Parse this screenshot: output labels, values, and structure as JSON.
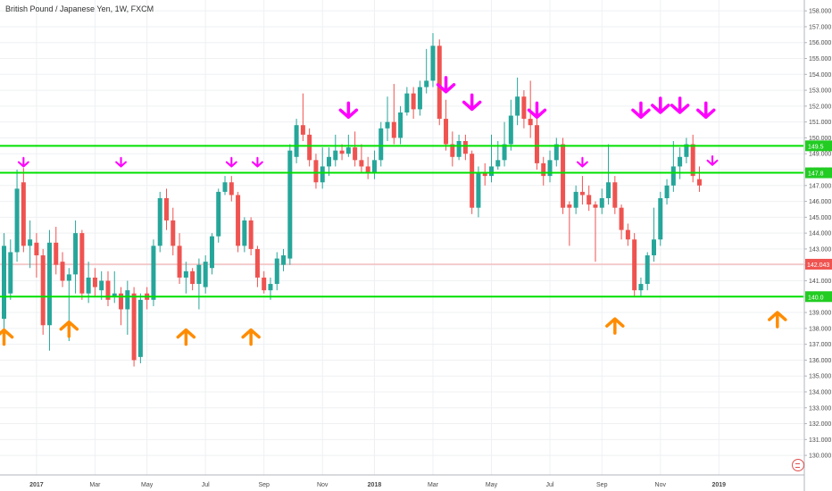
{
  "header": {
    "title": "British Pound / Japanese Yen, 1W, FXCM"
  },
  "colors": {
    "up": "#26a69a",
    "down": "#ef5350",
    "level_line": "#00e000",
    "sell_arrow": "#ff00ff",
    "buy_arrow": "#ff8c00",
    "current_price_line": "#f4a3a3",
    "current_price_tag": "#ef5350",
    "level_tag": "#22cc22"
  },
  "chart_data": {
    "type": "candlestick",
    "title": "British Pound / Japanese Yen, 1W, FXCM",
    "ylim": [
      129.5,
      158.6
    ],
    "y_ticks": [
      130.0,
      131.0,
      132.0,
      133.0,
      134.0,
      135.0,
      136.0,
      137.0,
      138.0,
      139.0,
      140.0,
      141.0,
      142.0,
      143.0,
      144.0,
      145.0,
      146.0,
      147.0,
      148.0,
      149.0,
      150.0,
      151.0,
      152.0,
      153.0,
      154.0,
      155.0,
      156.0,
      157.0,
      158.0
    ],
    "x_ticks": [
      {
        "label": "2017",
        "index": 5
      },
      {
        "label": "Mar",
        "index": 14
      },
      {
        "label": "May",
        "index": 22
      },
      {
        "label": "Jul",
        "index": 31
      },
      {
        "label": "Sep",
        "index": 40
      },
      {
        "label": "Nov",
        "index": 49
      },
      {
        "label": "2018",
        "index": 57
      },
      {
        "label": "Mar",
        "index": 66
      },
      {
        "label": "May",
        "index": 75
      },
      {
        "label": "Jul",
        "index": 84
      },
      {
        "label": "Sep",
        "index": 92
      },
      {
        "label": "Nov",
        "index": 101
      },
      {
        "label": "2019",
        "index": 110
      }
    ],
    "candles": [
      [
        138.6,
        143.2,
        137.0,
        144.0
      ],
      [
        140.2,
        142.8,
        139.8,
        143.6
      ],
      [
        142.8,
        146.8,
        142.2,
        148.0
      ],
      [
        147.2,
        143.2,
        142.8,
        148.1
      ],
      [
        143.2,
        143.6,
        141.8,
        144.8
      ],
      [
        143.4,
        142.6,
        141.2,
        144.0
      ],
      [
        142.6,
        138.2,
        137.6,
        143.0
      ],
      [
        138.2,
        143.4,
        136.6,
        144.2
      ],
      [
        143.4,
        142.0,
        141.4,
        144.4
      ],
      [
        142.2,
        141.0,
        140.6,
        142.8
      ],
      [
        141.0,
        141.4,
        137.2,
        141.8
      ],
      [
        141.4,
        144.0,
        140.2,
        144.8
      ],
      [
        144.0,
        140.2,
        139.8,
        144.2
      ],
      [
        140.2,
        141.2,
        139.6,
        142.2
      ],
      [
        141.2,
        140.6,
        140.0,
        141.8
      ],
      [
        140.4,
        141.0,
        139.8,
        141.6
      ],
      [
        141.0,
        139.8,
        139.4,
        141.6
      ],
      [
        140.0,
        140.2,
        139.6,
        141.6
      ],
      [
        140.2,
        139.2,
        138.2,
        140.6
      ],
      [
        139.2,
        140.4,
        137.6,
        141.0
      ],
      [
        140.2,
        136.0,
        135.6,
        140.6
      ],
      [
        136.2,
        139.8,
        135.8,
        140.2
      ],
      [
        140.2,
        139.8,
        139.2,
        140.6
      ],
      [
        139.8,
        143.2,
        139.4,
        143.6
      ],
      [
        143.2,
        146.2,
        142.8,
        146.6
      ],
      [
        146.2,
        144.8,
        144.2,
        146.8
      ],
      [
        144.8,
        143.2,
        142.6,
        145.6
      ],
      [
        143.2,
        141.2,
        140.8,
        144.0
      ],
      [
        141.2,
        141.6,
        140.2,
        142.2
      ],
      [
        141.6,
        140.8,
        140.4,
        141.8
      ],
      [
        140.8,
        142.0,
        139.2,
        142.4
      ],
      [
        140.6,
        142.2,
        140.2,
        142.6
      ],
      [
        141.8,
        143.8,
        141.4,
        144.0
      ],
      [
        143.8,
        146.6,
        143.4,
        146.8
      ],
      [
        146.6,
        147.2,
        146.4,
        147.6
      ],
      [
        147.2,
        146.4,
        146.0,
        147.6
      ],
      [
        146.4,
        143.2,
        142.8,
        146.6
      ],
      [
        143.2,
        144.8,
        142.8,
        145.0
      ],
      [
        144.8,
        143.0,
        142.6,
        145.0
      ],
      [
        143.0,
        141.2,
        140.6,
        143.2
      ],
      [
        141.2,
        140.4,
        140.2,
        141.6
      ],
      [
        140.4,
        140.8,
        139.8,
        141.2
      ],
      [
        140.8,
        142.4,
        140.4,
        142.8
      ],
      [
        142.0,
        142.6,
        141.6,
        143.0
      ],
      [
        142.4,
        149.2,
        142.0,
        149.6
      ],
      [
        148.8,
        150.8,
        148.4,
        151.2
      ],
      [
        150.8,
        150.2,
        149.8,
        152.8
      ],
      [
        150.2,
        148.6,
        148.2,
        150.6
      ],
      [
        148.6,
        147.2,
        146.8,
        149.0
      ],
      [
        147.2,
        148.2,
        146.8,
        149.4
      ],
      [
        148.2,
        148.8,
        147.6,
        149.4
      ],
      [
        148.6,
        149.2,
        148.2,
        150.2
      ],
      [
        149.2,
        149.0,
        148.6,
        149.6
      ],
      [
        149.0,
        149.4,
        148.8,
        150.2
      ],
      [
        149.4,
        148.6,
        148.2,
        150.4
      ],
      [
        148.6,
        148.2,
        147.8,
        149.6
      ],
      [
        148.2,
        147.8,
        147.4,
        148.8
      ],
      [
        147.8,
        148.6,
        147.4,
        149.2
      ],
      [
        148.6,
        150.6,
        148.2,
        151.0
      ],
      [
        150.6,
        151.0,
        149.8,
        152.6
      ],
      [
        151.0,
        150.0,
        149.6,
        153.4
      ],
      [
        150.0,
        151.6,
        149.6,
        152.0
      ],
      [
        151.6,
        152.8,
        151.4,
        153.2
      ],
      [
        152.8,
        151.8,
        151.2,
        153.2
      ],
      [
        151.8,
        153.2,
        151.4,
        153.6
      ],
      [
        153.2,
        153.6,
        152.8,
        155.6
      ],
      [
        153.6,
        155.8,
        153.2,
        156.6
      ],
      [
        155.8,
        151.2,
        150.8,
        156.2
      ],
      [
        151.2,
        149.6,
        149.2,
        152.4
      ],
      [
        149.6,
        148.8,
        148.2,
        150.4
      ],
      [
        148.8,
        149.8,
        148.6,
        150.2
      ],
      [
        149.8,
        149.0,
        148.6,
        150.2
      ],
      [
        149.0,
        145.6,
        145.2,
        149.2
      ],
      [
        145.6,
        147.8,
        145.0,
        148.2
      ],
      [
        147.8,
        147.6,
        147.0,
        148.4
      ],
      [
        147.6,
        148.2,
        147.2,
        150.2
      ],
      [
        148.2,
        148.6,
        148.0,
        149.8
      ],
      [
        148.6,
        149.6,
        148.2,
        151.0
      ],
      [
        149.6,
        151.4,
        149.2,
        152.4
      ],
      [
        151.4,
        152.6,
        150.8,
        153.8
      ],
      [
        152.6,
        151.2,
        150.6,
        153.0
      ],
      [
        151.2,
        150.8,
        150.0,
        153.6
      ],
      [
        150.8,
        148.4,
        148.0,
        151.2
      ],
      [
        148.4,
        147.6,
        147.0,
        148.8
      ],
      [
        147.6,
        148.6,
        147.2,
        149.2
      ],
      [
        148.6,
        149.6,
        148.2,
        150.0
      ],
      [
        149.6,
        145.6,
        145.2,
        150.0
      ],
      [
        145.8,
        145.6,
        143.2,
        146.0
      ],
      [
        145.6,
        146.6,
        145.2,
        147.0
      ],
      [
        146.6,
        146.4,
        145.8,
        147.6
      ],
      [
        146.4,
        145.8,
        145.4,
        147.0
      ],
      [
        145.8,
        145.6,
        142.2,
        146.0
      ],
      [
        145.6,
        146.2,
        145.2,
        146.8
      ],
      [
        146.2,
        147.2,
        145.8,
        149.6
      ],
      [
        147.2,
        145.6,
        145.2,
        147.6
      ],
      [
        145.6,
        144.2,
        143.6,
        145.8
      ],
      [
        144.2,
        143.6,
        143.2,
        144.6
      ],
      [
        143.6,
        140.4,
        140.0,
        144.0
      ],
      [
        140.4,
        140.8,
        140.0,
        141.2
      ],
      [
        140.8,
        142.6,
        140.4,
        142.8
      ],
      [
        142.6,
        143.6,
        142.2,
        145.6
      ],
      [
        143.6,
        146.2,
        143.2,
        146.6
      ],
      [
        146.2,
        147.0,
        145.8,
        147.4
      ],
      [
        147.0,
        148.2,
        146.6,
        149.8
      ],
      [
        148.2,
        148.8,
        147.4,
        149.4
      ],
      [
        148.8,
        149.6,
        148.4,
        150.0
      ],
      [
        149.6,
        147.6,
        147.2,
        150.2
      ],
      [
        147.4,
        147.0,
        146.6,
        148.2
      ]
    ],
    "horizontal_levels": [
      {
        "price": 149.5,
        "tag": "149.5"
      },
      {
        "price": 147.8,
        "tag": "147.8"
      },
      {
        "price": 140.0,
        "tag": "140.0"
      }
    ],
    "current_price": {
      "value": 142.043,
      "tag": "142.043"
    },
    "sell_arrows": [
      {
        "index": 3,
        "price": 148.2,
        "size": "small"
      },
      {
        "index": 18,
        "price": 148.2,
        "size": "small"
      },
      {
        "index": 35,
        "price": 148.2,
        "size": "small"
      },
      {
        "index": 39,
        "price": 148.2,
        "size": "small"
      },
      {
        "index": 53,
        "price": 151.3,
        "size": "large"
      },
      {
        "index": 68,
        "price": 152.9,
        "size": "large"
      },
      {
        "index": 72,
        "price": 151.8,
        "size": "large"
      },
      {
        "index": 82,
        "price": 151.3,
        "size": "large"
      },
      {
        "index": 89,
        "price": 148.2,
        "size": "small"
      },
      {
        "index": 98,
        "price": 151.3,
        "size": "large"
      },
      {
        "index": 101,
        "price": 151.6,
        "size": "large"
      },
      {
        "index": 104,
        "price": 151.6,
        "size": "large"
      },
      {
        "index": 108,
        "price": 151.3,
        "size": "large"
      },
      {
        "index": 109,
        "price": 148.3,
        "size": "small"
      }
    ],
    "buy_arrows": [
      {
        "index": 0,
        "price": 137.9
      },
      {
        "index": 10,
        "price": 138.4
      },
      {
        "index": 28,
        "price": 137.9
      },
      {
        "index": 38,
        "price": 137.9
      },
      {
        "index": 94,
        "price": 138.6
      },
      {
        "index": 119,
        "price": 139.0
      }
    ]
  }
}
